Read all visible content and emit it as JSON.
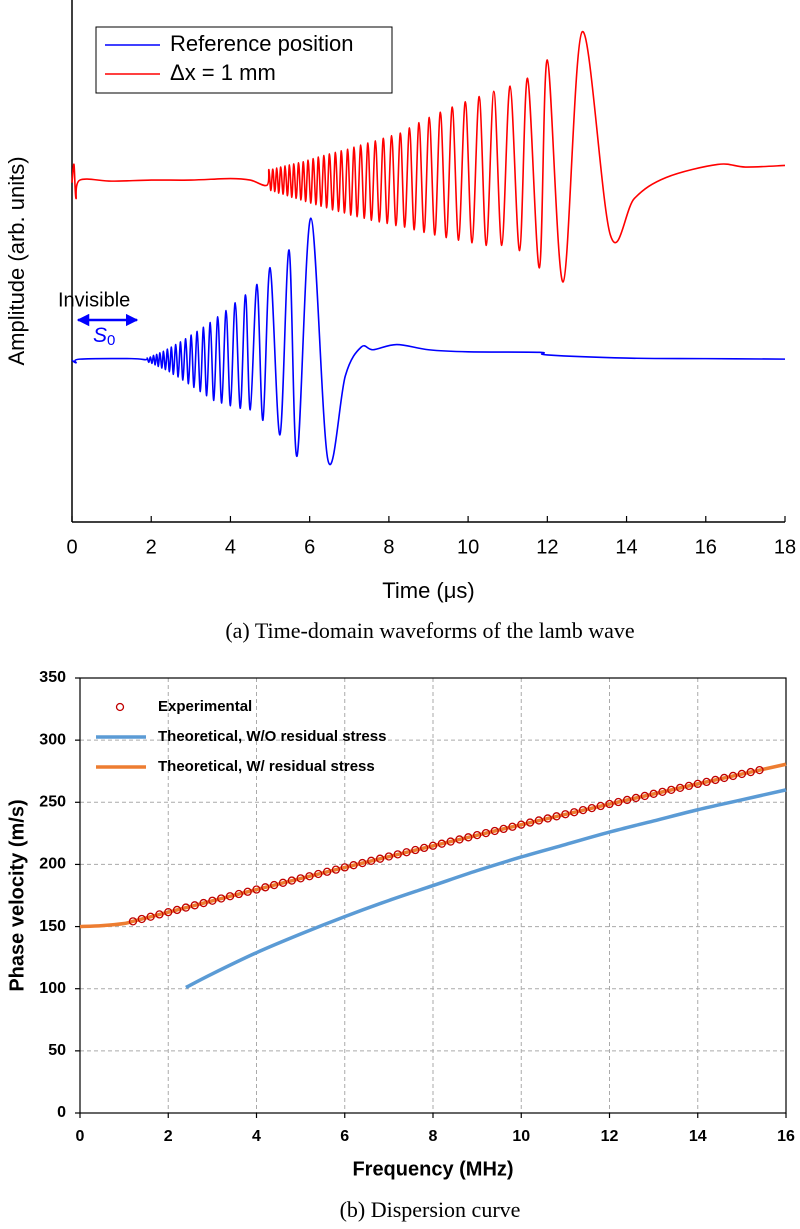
{
  "chart_data": [
    {
      "type": "line",
      "caption": "(a) Time-domain waveforms of the lamb wave",
      "xlabel": "Time (μs)",
      "ylabel": "Amplitude (arb. units)",
      "xlim": [
        0,
        18
      ],
      "xticks": [
        0,
        2,
        4,
        6,
        8,
        10,
        12,
        14,
        16,
        18
      ],
      "ylim": [
        0,
        100
      ],
      "grid": false,
      "legend": "upper left",
      "legend_box": true,
      "series": [
        {
          "name": "Reference position",
          "color": "#0000ff",
          "type": "line",
          "x": [
            0,
            0.1,
            0.2,
            1.5,
            1.86,
            1.9,
            1.94,
            1.98,
            2.02,
            2.06,
            2.1,
            2.14,
            2.18,
            2.22,
            2.27,
            2.31,
            2.36,
            2.41,
            2.46,
            2.51,
            2.56,
            2.62,
            2.68,
            2.74,
            2.8,
            2.87,
            2.94,
            3.01,
            3.08,
            3.16,
            3.24,
            3.32,
            3.4,
            3.49,
            3.58,
            3.68,
            3.78,
            3.89,
            4,
            4.12,
            4.25,
            4.38,
            4.5,
            4.67,
            4.82,
            5,
            5.25,
            5.48,
            5.68,
            6.03,
            6.46,
            6.9,
            7.3,
            7.6,
            8.2,
            9,
            10,
            11.8,
            12,
            14,
            16,
            18
          ],
          "values": [
            31,
            30.5,
            31.2,
            31.3,
            31.1,
            31.4,
            30.6,
            31.6,
            30.4,
            31.9,
            30.1,
            32.1,
            29.8,
            32.4,
            29.5,
            32.7,
            29.2,
            33.1,
            28.8,
            33.5,
            28.3,
            34,
            27.8,
            34.5,
            27.2,
            35.1,
            26.5,
            35.8,
            25.8,
            36.5,
            25,
            37.3,
            24.2,
            38.2,
            23.3,
            39.3,
            22.8,
            40.5,
            22.3,
            42,
            21.8,
            43.5,
            21.5,
            45.5,
            19.5,
            48.7,
            16.7,
            52.1,
            12.6,
            58.2,
            11.9,
            28,
            33.5,
            33,
            34,
            33,
            32.6,
            32.5,
            32,
            31.4,
            31.3,
            31.2
          ]
        },
        {
          "name": "Δx = 1 mm",
          "color": "#ff0000",
          "type": "line",
          "x": [
            0,
            0.05,
            0.1,
            0.2,
            1,
            2,
            3,
            4,
            4.5,
            4.92,
            4.97,
            5.02,
            5.07,
            5.12,
            5.17,
            5.22,
            5.27,
            5.33,
            5.38,
            5.44,
            5.49,
            5.55,
            5.6,
            5.66,
            5.72,
            5.78,
            5.84,
            5.9,
            5.96,
            6.03,
            6.09,
            6.16,
            6.22,
            6.29,
            6.36,
            6.43,
            6.5,
            6.58,
            6.65,
            6.73,
            6.8,
            6.88,
            6.96,
            7.04,
            7.12,
            7.2,
            7.29,
            7.38,
            7.47,
            7.56,
            7.66,
            7.76,
            7.86,
            7.96,
            8.07,
            8.18,
            8.29,
            8.4,
            8.52,
            8.64,
            8.76,
            8.89,
            9.02,
            9.16,
            9.3,
            9.45,
            9.6,
            9.76,
            9.93,
            10.1,
            10.28,
            10.46,
            10.65,
            10.85,
            11.06,
            11.3,
            11.5,
            11.8,
            12,
            12.4,
            12.88,
            13.59,
            14.2,
            15,
            16.3,
            17,
            18
          ],
          "values": [
            65,
            68.5,
            62,
            65.5,
            65.3,
            65.5,
            65.5,
            65.8,
            65.5,
            64.5,
            67.5,
            63.5,
            67.6,
            63.3,
            67.8,
            63,
            68,
            62.8,
            68.2,
            62.5,
            68.4,
            62.2,
            68.6,
            62,
            68.8,
            61.7,
            69,
            61.4,
            69.3,
            61.1,
            69.6,
            60.8,
            69.9,
            60.5,
            70.2,
            60.2,
            70.5,
            59.8,
            70.8,
            59.5,
            71.1,
            59.2,
            71.4,
            58.8,
            71.8,
            58.5,
            72.2,
            58.2,
            72.6,
            57.8,
            73,
            57.5,
            73.5,
            57.2,
            74,
            56.8,
            74.5,
            56.5,
            75.5,
            56,
            76.5,
            55.5,
            77.5,
            55,
            78.5,
            54.5,
            79.5,
            54,
            80.5,
            53.5,
            81.5,
            53,
            82.5,
            53,
            83.5,
            52,
            85,
            48.7,
            88.5,
            46,
            93.9,
            55,
            62,
            66,
            68.5,
            68,
            68.3
          ]
        }
      ],
      "annotations": [
        {
          "text": "Invisible",
          "color": "#0000ff"
        },
        {
          "text": "S",
          "subscript": "0",
          "color": "#0000ff"
        }
      ]
    },
    {
      "type": "line",
      "caption": "(b) Dispersion curve",
      "xlabel": "Frequency (MHz)",
      "ylabel": "Phase velocity (m/s)",
      "xlim": [
        0,
        16
      ],
      "xticks": [
        0,
        2,
        4,
        6,
        8,
        10,
        12,
        14,
        16
      ],
      "ylim": [
        0,
        350
      ],
      "yticks": [
        0,
        50,
        100,
        150,
        200,
        250,
        300,
        350
      ],
      "grid": true,
      "legend": "upper left",
      "legend_box": false,
      "series": [
        {
          "name": "Experimental",
          "color": "#c00000",
          "type": "scatter",
          "x": [
            1.2,
            1.4,
            1.6,
            1.8,
            2,
            2.2,
            2.4,
            2.6,
            2.8,
            3,
            3.2,
            3.4,
            3.6,
            3.8,
            4,
            4.2,
            4.4,
            4.6,
            4.8,
            5,
            5.2,
            5.4,
            5.6,
            5.8,
            6,
            6.2,
            6.4,
            6.6,
            6.8,
            7,
            7.2,
            7.4,
            7.6,
            7.8,
            8,
            8.2,
            8.4,
            8.6,
            8.8,
            9,
            9.2,
            9.4,
            9.6,
            9.8,
            10,
            10.2,
            10.4,
            10.6,
            10.8,
            11,
            11.2,
            11.4,
            11.6,
            11.8,
            12,
            12.2,
            12.4,
            12.6,
            12.8,
            13,
            13.2,
            13.4,
            13.6,
            13.8,
            14,
            14.2,
            14.4,
            14.6,
            14.8,
            15,
            15.2,
            15.4
          ],
          "values": [
            154.2,
            156.1,
            157.9,
            159.8,
            161.6,
            163.4,
            165.3,
            167.1,
            168.9,
            170.8,
            172.6,
            174.4,
            176.2,
            178,
            179.8,
            181.6,
            183.4,
            185.2,
            187,
            188.8,
            190.5,
            192.3,
            194.1,
            195.8,
            197.6,
            199.4,
            201.1,
            202.9,
            204.6,
            206.4,
            208.1,
            209.8,
            211.6,
            213.3,
            215,
            216.7,
            218.4,
            220.1,
            221.8,
            223.6,
            225.2,
            226.9,
            228.6,
            230.3,
            232,
            233.7,
            235.4,
            237,
            238.7,
            240.4,
            242,
            243.7,
            245.3,
            247,
            248.6,
            250.2,
            251.9,
            253.5,
            255.1,
            256.8,
            258.4,
            260,
            261.6,
            263.2,
            264.8,
            266.4,
            268,
            269.6,
            271.2,
            272.8,
            274.3,
            275.9
          ]
        },
        {
          "name": "Theoretical, W/O residual stress",
          "color": "#5b9bd5",
          "type": "line",
          "x": [
            2.4,
            3,
            4,
            5,
            6,
            7,
            8,
            9,
            10,
            11,
            12,
            13,
            14,
            15,
            16
          ],
          "values": [
            101,
            112,
            129,
            144,
            158,
            171,
            183,
            195,
            206,
            216,
            226,
            235,
            244,
            252,
            260
          ]
        },
        {
          "name": "Theoretical, W/ residual stress",
          "color": "#ed7d31",
          "type": "line",
          "x": [
            0,
            0.5,
            1,
            1.2,
            2,
            4,
            6,
            8,
            10,
            12,
            14,
            16
          ],
          "values": [
            150,
            150.8,
            152.5,
            154.2,
            161.6,
            179.8,
            197.6,
            215,
            232,
            248.6,
            264.8,
            280.6
          ]
        }
      ]
    }
  ]
}
